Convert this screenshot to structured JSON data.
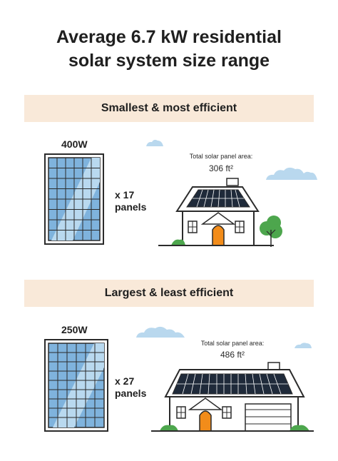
{
  "title": {
    "line1": "Average 6.7 kW residential",
    "line2": "solar system size range"
  },
  "sections": [
    {
      "heading": "Smallest & most efficient",
      "panel_wattage": "400W",
      "panel_count_line1": "x 17",
      "panel_count_line2": "panels",
      "area_label": "Total solar panel area:",
      "area_value": "306 ft²"
    },
    {
      "heading": "Largest & least efficient",
      "panel_wattage": "250W",
      "panel_count_line1": "x 27",
      "panel_count_line2": "panels",
      "area_label": "Total solar panel area:",
      "area_value": "486 ft²"
    }
  ],
  "colors": {
    "band": "#f9e9d9",
    "panel": "#7fb3dd",
    "house_door": "#f28c1a",
    "tree": "#4da64d",
    "cloud": "#b9d8ee"
  },
  "icons": [
    "solar-panel-icon",
    "house-icon",
    "cloud-icon",
    "tree-icon",
    "bush-icon"
  ]
}
